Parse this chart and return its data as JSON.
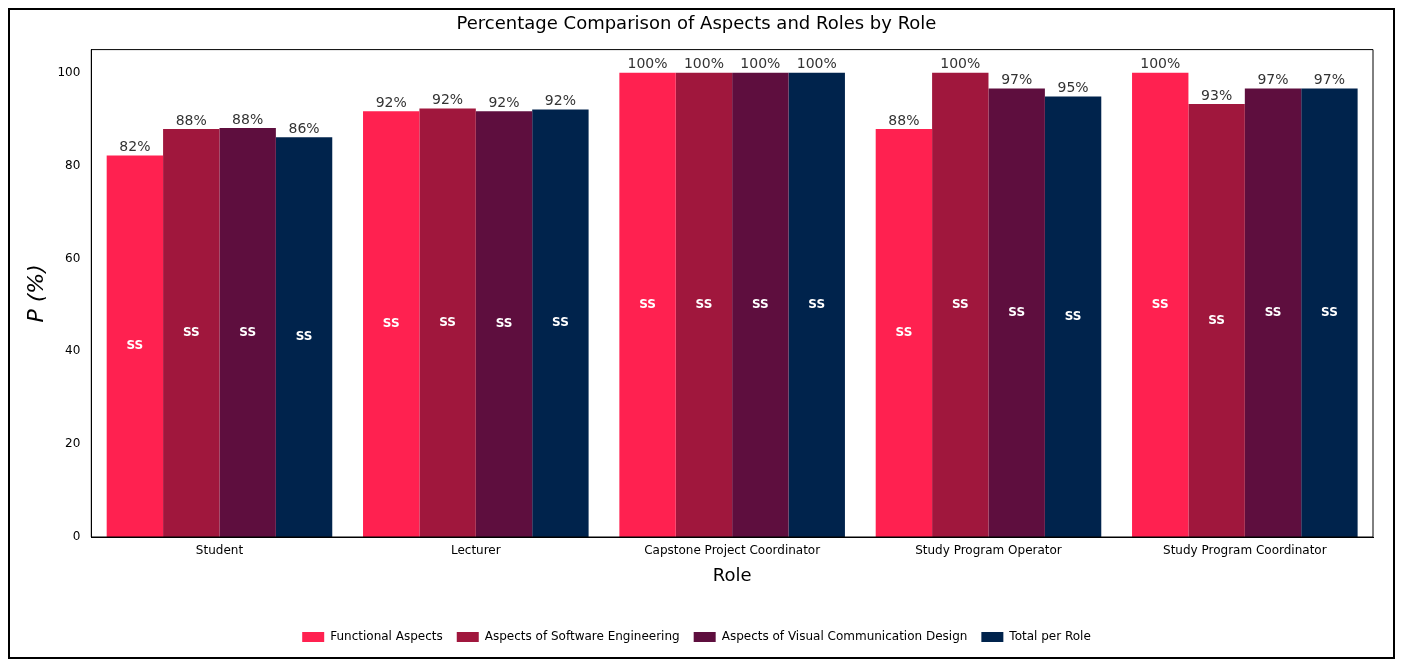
{
  "chart_data": {
    "type": "bar",
    "title": "Percentage Comparison of Aspects and Roles by Role",
    "xlabel": "Role",
    "ylabel": "P (%)",
    "categories": [
      "Student",
      "Lecturer",
      "Capstone Project Coordinator",
      "Study Program Operator",
      "Study Program Coordinator"
    ],
    "series": [
      {
        "name": "Functional Aspects",
        "color": "#ff2150",
        "values": [
          82.2,
          91.7,
          100,
          87.9,
          100
        ],
        "value_labels": [
          "82%",
          "92%",
          "100%",
          "88%",
          "100%"
        ]
      },
      {
        "name": "Aspects of Software Engineering",
        "color": "#a0173d",
        "values": [
          87.9,
          92.3,
          100,
          100,
          93.3
        ],
        "value_labels": [
          "88%",
          "92%",
          "100%",
          "100%",
          "93%"
        ]
      },
      {
        "name": "Aspects of Visual Communication Design",
        "color": "#5e0e3e",
        "values": [
          88.1,
          91.7,
          100,
          96.6,
          96.6
        ],
        "value_labels": [
          "88%",
          "92%",
          "100%",
          "97%",
          "97%"
        ]
      },
      {
        "name": "Total per Role",
        "color": "#00234c",
        "values": [
          86.1,
          92.1,
          100,
          94.9,
          96.6
        ],
        "value_labels": [
          "86%",
          "92%",
          "100%",
          "95%",
          "97%"
        ]
      }
    ],
    "annotations": [
      "SS",
      "SS",
      "SS",
      "SS",
      "SS",
      "SS",
      "SS",
      "SS",
      "SS",
      "SS",
      "SS",
      "SS",
      "SS",
      "SS",
      "SS",
      "SS",
      "SS",
      "SS",
      "SS",
      "SS"
    ],
    "ylim": [
      0,
      105
    ],
    "yticks": [
      0,
      20,
      40,
      60,
      80,
      100
    ],
    "grid": false,
    "legend": "bottom"
  }
}
